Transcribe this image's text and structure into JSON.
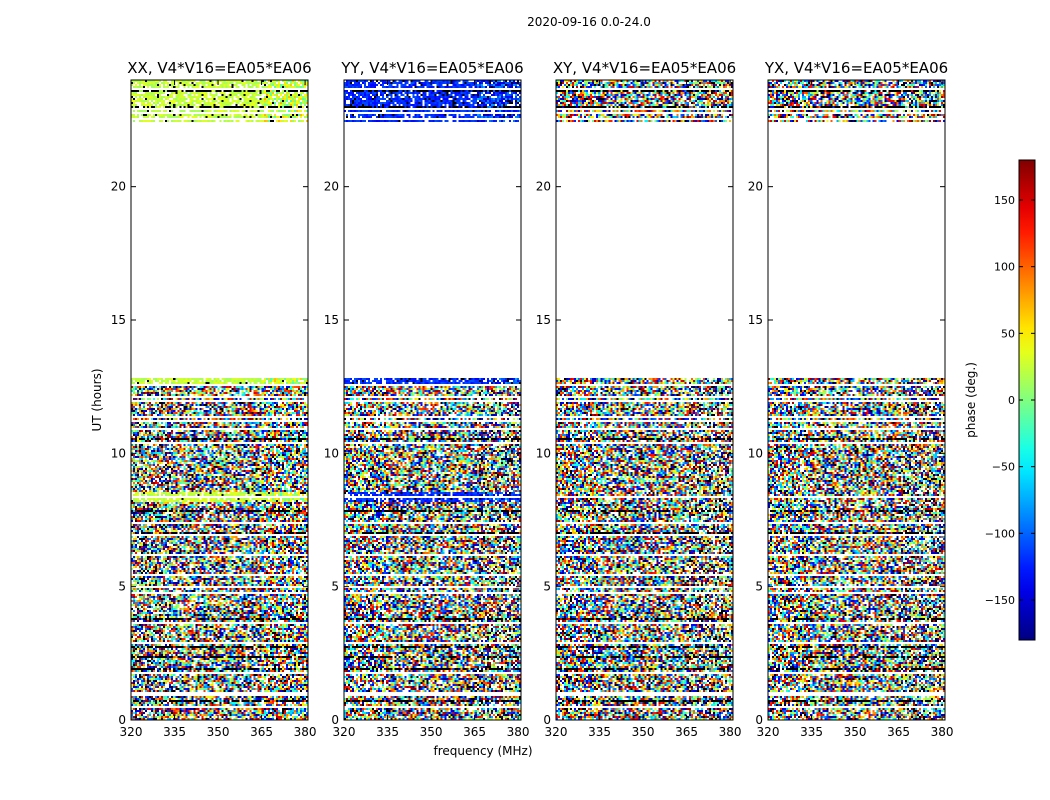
{
  "chart_data": {
    "type": "heatmap",
    "title": "2020-09-16 0.0-24.0",
    "xlabel": "frequency (MHz)",
    "ylabel": "UT (hours)",
    "xlim": [
      320,
      381
    ],
    "ylim": [
      0,
      24
    ],
    "xticks": [
      "320",
      "335",
      "350",
      "365",
      "380"
    ],
    "yticks": [
      "0",
      "5",
      "10",
      "15",
      "20"
    ],
    "colorbar": {
      "label": "phase (deg.)",
      "range": [
        -180,
        180
      ],
      "ticks": [
        "−150",
        "−100",
        "−50",
        "0",
        "50",
        "100",
        "150"
      ]
    },
    "data_gap_hours": [
      12.8,
      22.4
    ],
    "panels": [
      {
        "title": "XX, V4*V16=EA05*EA06",
        "polarization": "XX",
        "dominant_phase_deg": 25
      },
      {
        "title": "YY, V4*V16=EA05*EA06",
        "polarization": "YY",
        "dominant_phase_deg": -120
      },
      {
        "title": "XY, V4*V16=EA05*EA06",
        "polarization": "XY",
        "dominant_phase_deg": null
      },
      {
        "title": "YX, V4*V16=EA05*EA06",
        "polarization": "YX",
        "dominant_phase_deg": null
      }
    ]
  }
}
